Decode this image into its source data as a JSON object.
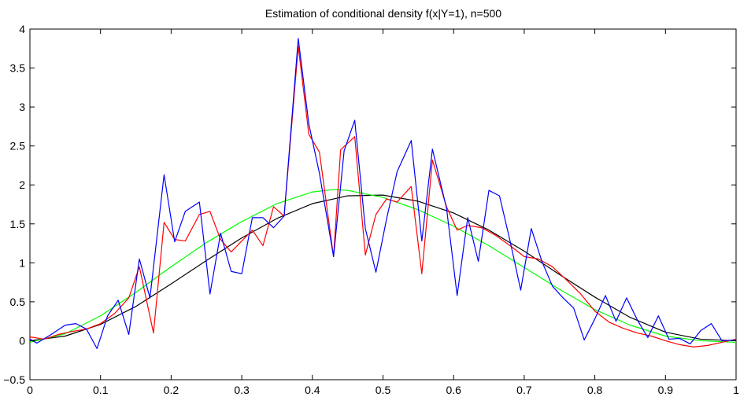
{
  "chart_data": {
    "type": "line",
    "title": "Estimation of conditional density f(x|Y=1), n=500",
    "xlabel": "",
    "ylabel": "",
    "xlim": [
      0,
      1
    ],
    "ylim": [
      -0.5,
      4
    ],
    "x_ticks": [
      "0",
      "0.1",
      "0.2",
      "0.3",
      "0.4",
      "0.5",
      "0.6",
      "0.7",
      "0.8",
      "0.9",
      "1"
    ],
    "y_ticks": [
      "−0.5",
      "0",
      "0.5",
      "1",
      "1.5",
      "2",
      "2.5",
      "3",
      "3.5",
      "4"
    ],
    "grid": false,
    "legend": "none",
    "colors": {
      "black": "#000000",
      "green": "#00ff00",
      "red": "#ff0000",
      "blue": "#0000ff"
    },
    "series": [
      {
        "color": "#000000",
        "x": [
          0,
          0.05,
          0.1,
          0.15,
          0.2,
          0.25,
          0.3,
          0.35,
          0.4,
          0.45,
          0.5,
          0.55,
          0.6,
          0.65,
          0.7,
          0.75,
          0.8,
          0.85,
          0.9,
          0.95,
          1
        ],
        "y": [
          0,
          0.06,
          0.21,
          0.44,
          0.73,
          1.03,
          1.32,
          1.57,
          1.76,
          1.86,
          1.87,
          1.79,
          1.64,
          1.42,
          1.15,
          0.85,
          0.56,
          0.3,
          0.11,
          0.02,
          0
        ]
      },
      {
        "color": "#00ff00",
        "x": [
          0,
          0.05,
          0.1,
          0.15,
          0.2,
          0.25,
          0.3,
          0.35,
          0.4,
          0.43,
          0.45,
          0.5,
          0.55,
          0.6,
          0.65,
          0.7,
          0.75,
          0.8,
          0.85,
          0.9,
          0.95,
          1
        ],
        "y": [
          -0.02,
          0.09,
          0.32,
          0.62,
          0.95,
          1.26,
          1.53,
          1.76,
          1.91,
          1.94,
          1.93,
          1.84,
          1.68,
          1.47,
          1.22,
          0.94,
          0.66,
          0.4,
          0.2,
          0.06,
          0.0,
          -0.02
        ]
      },
      {
        "color": "#ff0000",
        "x": [
          0,
          0.02,
          0.04,
          0.06,
          0.08,
          0.1,
          0.12,
          0.14,
          0.155,
          0.175,
          0.19,
          0.205,
          0.22,
          0.24,
          0.255,
          0.27,
          0.285,
          0.3,
          0.315,
          0.33,
          0.345,
          0.36,
          0.38,
          0.395,
          0.41,
          0.43,
          0.44,
          0.46,
          0.475,
          0.49,
          0.505,
          0.52,
          0.54,
          0.555,
          0.57,
          0.59,
          0.605,
          0.62,
          0.64,
          0.66,
          0.68,
          0.7,
          0.72,
          0.74,
          0.76,
          0.78,
          0.8,
          0.82,
          0.84,
          0.86,
          0.88,
          0.9,
          0.92,
          0.94,
          0.96,
          0.98,
          1
        ],
        "y": [
          0.05,
          0.02,
          0.08,
          0.12,
          0.15,
          0.22,
          0.35,
          0.55,
          0.95,
          0.1,
          1.52,
          1.3,
          1.28,
          1.62,
          1.66,
          1.3,
          1.14,
          1.28,
          1.42,
          1.22,
          1.72,
          1.6,
          3.78,
          2.65,
          2.42,
          1.08,
          2.45,
          2.62,
          1.1,
          1.62,
          1.82,
          1.78,
          1.98,
          0.86,
          2.32,
          1.72,
          1.42,
          1.48,
          1.45,
          1.35,
          1.22,
          1.08,
          1.05,
          0.95,
          0.78,
          0.6,
          0.38,
          0.24,
          0.16,
          0.1,
          0.06,
          0.0,
          -0.05,
          -0.08,
          -0.06,
          -0.02,
          0.02
        ]
      },
      {
        "color": "#0000ff",
        "x": [
          0,
          0.01,
          0.03,
          0.05,
          0.065,
          0.08,
          0.095,
          0.11,
          0.125,
          0.14,
          0.155,
          0.17,
          0.19,
          0.205,
          0.22,
          0.24,
          0.255,
          0.27,
          0.285,
          0.3,
          0.315,
          0.33,
          0.345,
          0.36,
          0.38,
          0.395,
          0.41,
          0.43,
          0.445,
          0.46,
          0.475,
          0.49,
          0.505,
          0.52,
          0.54,
          0.555,
          0.57,
          0.59,
          0.605,
          0.62,
          0.635,
          0.65,
          0.665,
          0.68,
          0.695,
          0.71,
          0.725,
          0.74,
          0.755,
          0.77,
          0.785,
          0.8,
          0.815,
          0.83,
          0.845,
          0.86,
          0.875,
          0.89,
          0.905,
          0.92,
          0.935,
          0.95,
          0.965,
          0.98,
          1
        ],
        "y": [
          0.02,
          -0.03,
          0.08,
          0.2,
          0.22,
          0.15,
          -0.1,
          0.32,
          0.52,
          0.08,
          1.05,
          0.55,
          2.13,
          1.27,
          1.66,
          1.78,
          0.6,
          1.38,
          0.89,
          0.86,
          1.58,
          1.58,
          1.45,
          1.6,
          3.88,
          2.78,
          2.15,
          1.08,
          2.44,
          2.83,
          1.44,
          0.88,
          1.56,
          2.17,
          2.57,
          1.28,
          2.46,
          1.7,
          0.58,
          1.58,
          1.02,
          1.93,
          1.86,
          1.28,
          0.65,
          1.44,
          1.02,
          0.7,
          0.55,
          0.42,
          0.01,
          0.28,
          0.58,
          0.25,
          0.55,
          0.27,
          0.04,
          0.32,
          0.02,
          0.03,
          -0.04,
          0.13,
          0.22,
          0.0,
          0.01
        ]
      }
    ]
  }
}
